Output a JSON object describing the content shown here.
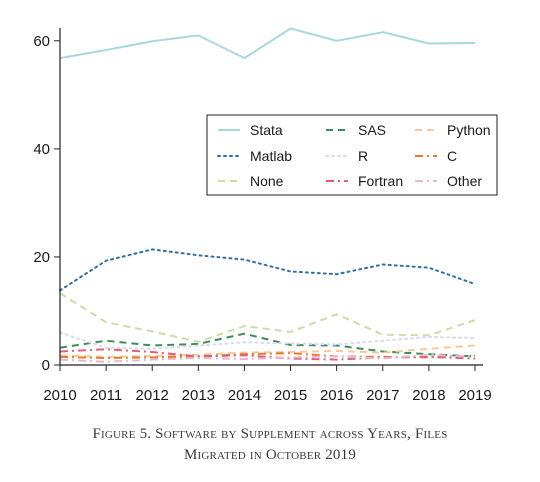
{
  "chart_data": {
    "type": "line",
    "title": "",
    "xlabel": "",
    "ylabel": "",
    "x": [
      2010,
      2011,
      2012,
      2013,
      2014,
      2015,
      2016,
      2017,
      2018,
      2019
    ],
    "xlim": [
      2010,
      2019
    ],
    "ylim": [
      0,
      62
    ],
    "yticks": [
      0,
      20,
      40,
      60
    ],
    "grid": false,
    "legend_position": "center-right",
    "series": [
      {
        "name": "Stata",
        "color": "#a8d8dc",
        "dash": "solid",
        "values": [
          56.8,
          58.3,
          59.9,
          61.0,
          56.8,
          62.3,
          60.0,
          61.6,
          59.5,
          59.6
        ]
      },
      {
        "name": "SAS",
        "color": "#3d8c5c",
        "dash": "dashed",
        "values": [
          3.2,
          4.5,
          3.6,
          3.9,
          5.8,
          3.7,
          3.6,
          2.5,
          2.0,
          1.6
        ]
      },
      {
        "name": "Python",
        "color": "#f5c89a",
        "dash": "dashed",
        "values": [
          1.8,
          1.5,
          1.7,
          1.9,
          2.3,
          2.4,
          2.6,
          2.3,
          3.0,
          3.6
        ]
      },
      {
        "name": "Matlab",
        "color": "#2f6fa3",
        "dash": "dotted",
        "values": [
          13.8,
          19.3,
          21.4,
          20.3,
          19.5,
          17.3,
          16.8,
          18.6,
          18.0,
          15.0
        ]
      },
      {
        "name": "R",
        "color": "#d9d9f0",
        "dash": "dotted",
        "values": [
          6.0,
          3.2,
          3.0,
          3.6,
          4.2,
          4.0,
          3.8,
          4.5,
          5.2,
          5.0
        ]
      },
      {
        "name": "C",
        "color": "#e87b2a",
        "dash": "dashdot",
        "values": [
          1.5,
          1.3,
          1.4,
          1.6,
          2.0,
          2.2,
          1.6,
          1.5,
          1.4,
          1.7
        ]
      },
      {
        "name": "None",
        "color": "#c9dfa8",
        "dash": "dashed",
        "values": [
          13.3,
          7.9,
          6.2,
          4.3,
          7.2,
          6.1,
          9.4,
          5.6,
          5.5,
          8.3
        ]
      },
      {
        "name": "Fortran",
        "color": "#e0607a",
        "dash": "dashdot",
        "values": [
          2.5,
          2.9,
          2.4,
          1.6,
          1.8,
          1.2,
          1.0,
          1.4,
          1.5,
          1.2
        ]
      },
      {
        "name": "Other",
        "color": "#e6b8d2",
        "dash": "dashdot",
        "values": [
          1.0,
          0.6,
          1.0,
          1.3,
          1.1,
          1.4,
          1.6,
          1.2,
          1.9,
          1.5
        ]
      }
    ]
  },
  "caption": {
    "line1": "Figure 5. Software by Supplement across Years, Files",
    "line2": "Migrated in October 2019"
  }
}
